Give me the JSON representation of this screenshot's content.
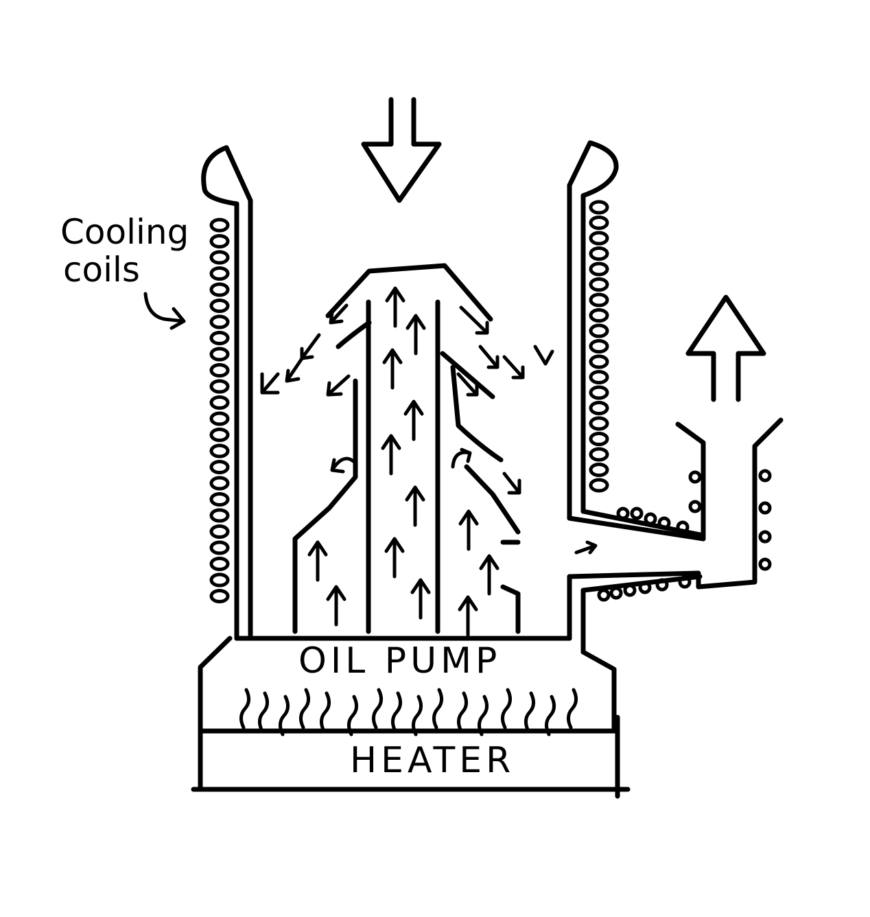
{
  "labels": {
    "cooling_line1": "Cooling",
    "cooling_line2": "coils",
    "pump": "OIL PUMP",
    "heater": "HEATER"
  },
  "colors": {
    "ink": "#000000",
    "background": "#ffffff"
  }
}
